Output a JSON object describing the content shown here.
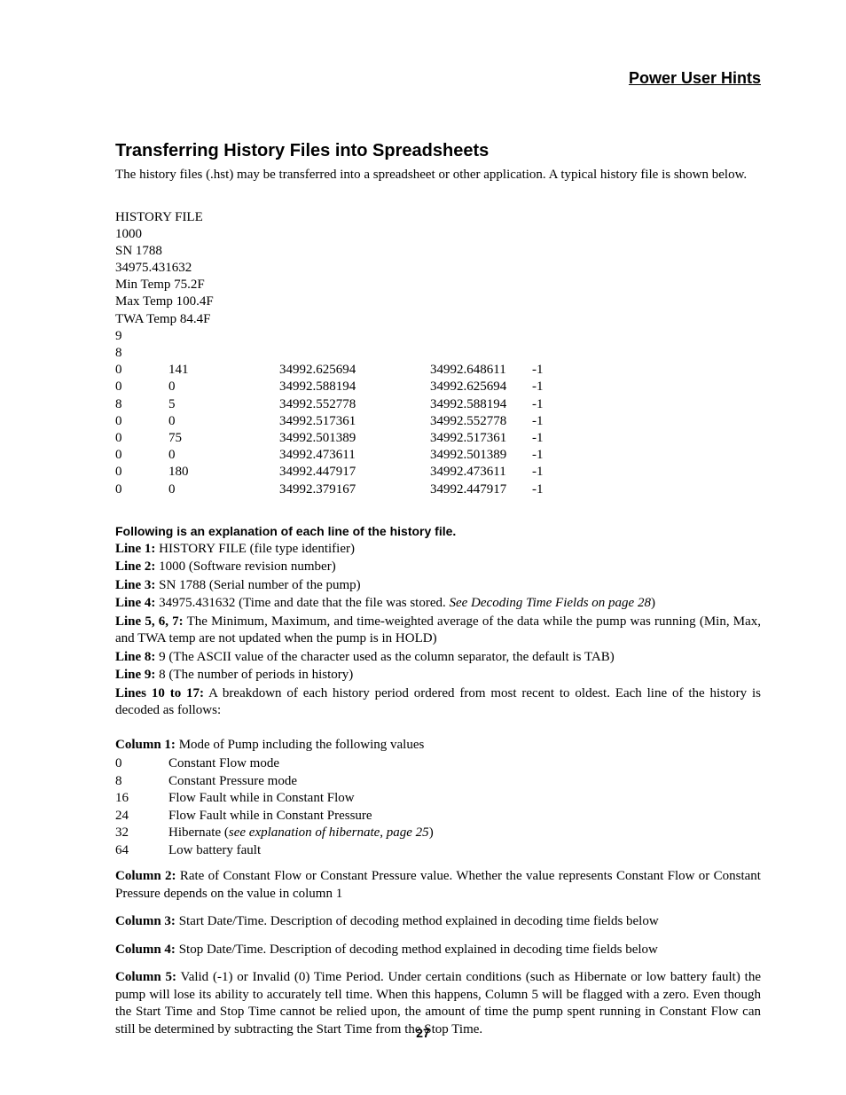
{
  "header": "Power User Hints",
  "section_title": "Transferring History Files into Spreadsheets",
  "intro": "The history files (.hst) may be transferred into a spreadsheet or other application. A typical history file is shown below.",
  "history_file": {
    "head_lines": [
      "HISTORY FILE",
      "1000",
      "SN 1788",
      "34975.431632",
      "Min Temp 75.2F",
      "Max Temp 100.4F",
      "TWA Temp 84.4F",
      "9",
      "8"
    ],
    "rows": [
      [
        "0",
        "141",
        "34992.625694",
        "34992.648611",
        "-1"
      ],
      [
        "0",
        "0",
        "34992.588194",
        "34992.625694",
        "-1"
      ],
      [
        "8",
        "5",
        "34992.552778",
        "34992.588194",
        "-1"
      ],
      [
        "0",
        "0",
        "34992.517361",
        "34992.552778",
        "-1"
      ],
      [
        "0",
        "75",
        "34992.501389",
        "34992.517361",
        "-1"
      ],
      [
        "0",
        "0",
        "34992.473611",
        "34992.501389",
        "-1"
      ],
      [
        "0",
        "180",
        "34992.447917",
        "34992.473611",
        "-1"
      ],
      [
        "0",
        "0",
        "34992.379167",
        "34992.447917",
        "-1"
      ]
    ]
  },
  "explain_head": "Following is an explanation of each line of the history file.",
  "line_explanations": [
    {
      "label": "Line 1:",
      "text": " HISTORY FILE (file type identifier)"
    },
    {
      "label": "Line 2:",
      "text": " 1000 (Software revision number)"
    },
    {
      "label": "Line 3:",
      "text": " SN 1788 (Serial number of the pump)"
    },
    {
      "label": "Line 4:",
      "text_pre": " 34975.431632 (Time and date that the file was stored. ",
      "italic": "See Decoding Time Fields on page 28",
      "text_post": ")"
    },
    {
      "label": "Line 5, 6, 7:",
      "text": " The Minimum, Maximum, and time-weighted average of the data while the pump was running (Min, Max, and TWA temp are not updated when the pump is in HOLD)"
    },
    {
      "label": "Line 8:",
      "text": " 9 (The ASCII value of the character used as the column separator, the default is TAB)"
    },
    {
      "label": "Line 9:",
      "text": " 8 (The number of periods in history)"
    },
    {
      "label": "Lines 10 to 17:",
      "text": " A breakdown of each history period ordered from most recent to oldest. Each line of the history is decoded as follows:"
    }
  ],
  "column1_label": "Column 1:",
  "column1_text": " Mode of Pump including the following values",
  "mode_table": [
    {
      "code": "0",
      "desc": "Constant Flow mode"
    },
    {
      "code": "8",
      "desc": "Constant Pressure mode"
    },
    {
      "code": "16",
      "desc": "Flow Fault while in Constant Flow"
    },
    {
      "code": "24",
      "desc": "Flow Fault while in Constant Pressure"
    },
    {
      "code": "32",
      "desc_pre": "Hibernate (",
      "italic": "see explanation of hibernate, page 25",
      "desc_post": ")"
    },
    {
      "code": "64",
      "desc": "Low battery fault"
    }
  ],
  "column2_label": "Column 2:",
  "column2_text": " Rate of Constant Flow or Constant Pressure value. Whether the value represents Constant Flow or Constant Pressure depends on the value in column 1",
  "column3_label": "Column 3:",
  "column3_text": " Start Date/Time. Description of decoding method explained in decoding time fields below",
  "column4_label": "Column 4:",
  "column4_text": " Stop Date/Time. Description of decoding method explained in decoding time fields below",
  "column5_label": "Column 5:",
  "column5_text": " Valid (-1) or Invalid (0) Time Period. Under certain conditions (such as Hibernate or low battery fault) the pump will lose its ability to accurately tell time. When this happens, Column 5 will be flagged with a zero. Even though the Start Time and Stop Time cannot be relied upon, the amount of time the pump spent running in Constant Flow can still be determined by subtracting the Start Time from the Stop Time.",
  "page_number": "27"
}
